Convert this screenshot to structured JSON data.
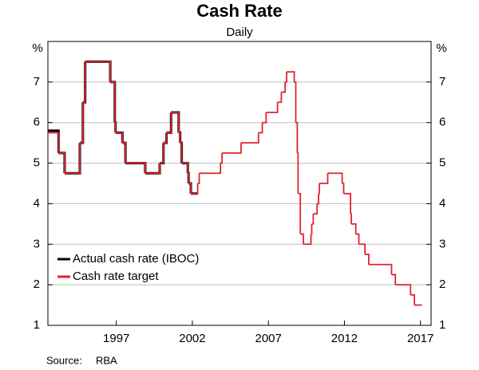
{
  "chart_data": {
    "type": "line",
    "step": true,
    "title": "Cash Rate",
    "subtitle": "Daily",
    "y_unit": "%",
    "source_label": "Source:",
    "source": "RBA",
    "x": [
      1992.5,
      1993.2,
      1993.6,
      1994.6,
      1994.8,
      1994.95,
      1996.6,
      1996.9,
      1996.95,
      1997.4,
      1997.6,
      1998.9,
      1999.85,
      2000.1,
      2000.3,
      2000.6,
      2001.1,
      2001.2,
      2001.3,
      2001.7,
      2001.75,
      2001.9,
      2002.35,
      2002.45,
      2003.85,
      2003.95,
      2005.2,
      2006.35,
      2006.6,
      2006.85,
      2007.6,
      2007.85,
      2008.1,
      2008.2,
      2008.7,
      2008.8,
      2008.9,
      2008.95,
      2009.1,
      2009.3,
      2009.8,
      2009.85,
      2009.95,
      2010.2,
      2010.3,
      2010.35,
      2010.9,
      2011.85,
      2011.95,
      2012.4,
      2012.45,
      2012.75,
      2012.95,
      2013.35,
      2013.6,
      2015.1,
      2015.35,
      2016.35,
      2016.6,
      2017.1
    ],
    "series": [
      {
        "name": "Actual cash rate (IBOC)",
        "color": "#000000",
        "values": [
          5.8,
          5.25,
          4.75,
          5.5,
          6.5,
          7.5,
          7.0,
          6.0,
          5.75,
          5.5,
          5.0,
          4.75,
          5.0,
          5.5,
          5.75,
          6.25,
          5.75,
          5.5,
          5.0,
          4.75,
          4.5,
          4.25,
          null,
          null,
          null,
          null,
          null,
          null,
          null,
          null,
          null,
          null,
          null,
          null,
          null,
          null,
          null,
          null,
          null,
          null,
          null,
          null,
          null,
          null,
          null,
          null,
          null,
          null,
          null,
          null,
          null,
          null,
          null,
          null,
          null,
          null,
          null,
          null,
          null,
          null
        ]
      },
      {
        "name": "Cash rate target",
        "color": "#e0242f",
        "values": [
          5.75,
          5.25,
          4.75,
          5.5,
          6.5,
          7.5,
          7.0,
          6.0,
          5.75,
          5.5,
          5.0,
          4.75,
          5.0,
          5.5,
          5.75,
          6.25,
          5.75,
          5.5,
          5.0,
          4.75,
          4.5,
          4.25,
          4.5,
          4.75,
          5.0,
          5.25,
          5.5,
          5.75,
          6.0,
          6.25,
          6.5,
          6.75,
          7.0,
          7.25,
          7.0,
          6.0,
          5.25,
          4.25,
          3.25,
          3.0,
          3.25,
          3.5,
          3.75,
          4.0,
          4.25,
          4.5,
          4.75,
          4.5,
          4.25,
          3.75,
          3.5,
          3.25,
          3.0,
          2.75,
          2.5,
          2.25,
          2.0,
          1.75,
          1.5,
          1.5
        ]
      }
    ],
    "xlim": [
      1992.5,
      2017.7
    ],
    "xticks": [
      1997,
      2002,
      2007,
      2012,
      2017
    ],
    "ylim": [
      1,
      8
    ],
    "yticks": [
      1,
      2,
      3,
      4,
      5,
      6,
      7
    ],
    "grid": true,
    "legend": "lower left"
  }
}
